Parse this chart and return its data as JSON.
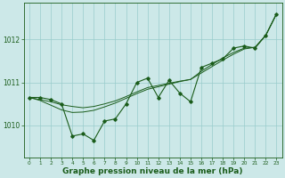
{
  "x": [
    0,
    1,
    2,
    3,
    4,
    5,
    6,
    7,
    8,
    9,
    10,
    11,
    12,
    13,
    14,
    15,
    16,
    17,
    18,
    19,
    20,
    21,
    22,
    23
  ],
  "y_main": [
    1010.65,
    1010.65,
    1010.6,
    1010.5,
    1009.75,
    1009.8,
    1009.65,
    1010.1,
    1010.15,
    1010.5,
    1011.0,
    1011.1,
    1010.65,
    1011.05,
    1010.75,
    1010.55,
    1011.35,
    1011.45,
    1011.55,
    1011.8,
    1011.85,
    1011.8,
    1012.1,
    1012.6
  ],
  "y_smooth1": [
    1010.65,
    1010.6,
    1010.55,
    1010.48,
    1010.44,
    1010.41,
    1010.44,
    1010.5,
    1010.57,
    1010.67,
    1010.78,
    1010.88,
    1010.93,
    1010.98,
    1011.03,
    1011.07,
    1011.22,
    1011.37,
    1011.52,
    1011.66,
    1011.78,
    1011.82,
    1012.1,
    1012.6
  ],
  "y_smooth2": [
    1010.65,
    1010.58,
    1010.47,
    1010.36,
    1010.3,
    1010.31,
    1010.35,
    1010.43,
    1010.52,
    1010.63,
    1010.74,
    1010.84,
    1010.9,
    1010.96,
    1011.02,
    1011.07,
    1011.26,
    1011.42,
    1011.57,
    1011.7,
    1011.8,
    1011.82,
    1012.1,
    1012.6
  ],
  "line_color": "#1a5c1a",
  "bg_color": "#cce8e8",
  "grid_color": "#99cccc",
  "xlabel": "Graphe pression niveau de la mer (hPa)",
  "ylim_min": 1009.25,
  "ylim_max": 1012.85,
  "yticks": [
    1010,
    1011,
    1012
  ],
  "ytick_fontsize": 5.5,
  "xtick_fontsize": 4.2,
  "xlabel_fontsize": 6.5
}
